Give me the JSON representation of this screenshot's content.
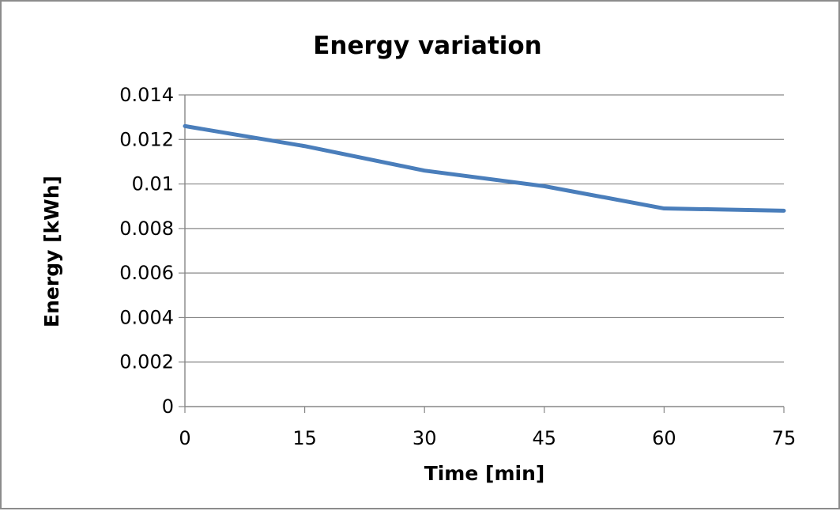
{
  "chart_data": {
    "type": "line",
    "title": "Energy variation",
    "xlabel": "Time [min]",
    "ylabel": "Energy [kWh]",
    "x": [
      0,
      15,
      30,
      45,
      60,
      75
    ],
    "xticks": [
      "0",
      "15",
      "30",
      "45",
      "60",
      "75"
    ],
    "yticks": [
      "0",
      "0.002",
      "0.004",
      "0.006",
      "0.008",
      "0.01",
      "0.012",
      "0.014"
    ],
    "ytick_values": [
      0,
      0.002,
      0.004,
      0.006,
      0.008,
      0.01,
      0.012,
      0.014
    ],
    "xlim": [
      0,
      75
    ],
    "ylim": [
      0,
      0.014
    ],
    "grid": "horizontal",
    "legend": "none",
    "series": [
      {
        "values": [
          0.0126,
          0.0117,
          0.0106,
          0.0099,
          0.0089,
          0.0088
        ],
        "color": "#4a7ebb"
      }
    ]
  }
}
